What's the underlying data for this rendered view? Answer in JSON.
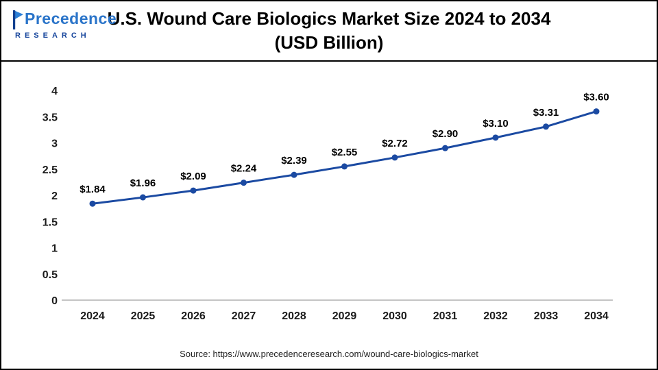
{
  "logo": {
    "name": "Precedence",
    "subtitle": "RESEARCH"
  },
  "header": {
    "title_line1": "U.S. Wound Care Biologics Market Size 2024 to 2034",
    "title_line2": "(USD Billion)"
  },
  "chart_data": {
    "type": "line",
    "title": "U.S. Wound Care Biologics Market Size 2024 to 2034 (USD Billion)",
    "categories": [
      "2024",
      "2025",
      "2026",
      "2027",
      "2028",
      "2029",
      "2030",
      "2031",
      "2032",
      "2033",
      "2034"
    ],
    "values": [
      1.84,
      1.96,
      2.09,
      2.24,
      2.39,
      2.55,
      2.72,
      2.9,
      3.1,
      3.31,
      3.6
    ],
    "point_labels": [
      "$1.84",
      "$1.96",
      "$2.09",
      "$2.24",
      "$2.39",
      "$2.55",
      "$2.72",
      "$2.90",
      "$3.10",
      "$3.31",
      "$3.60"
    ],
    "xlabel": "",
    "ylabel": "",
    "ylim": [
      0,
      4
    ],
    "yticks": [
      "0",
      "0.5",
      "1",
      "1.5",
      "2",
      "2.5",
      "3",
      "3.5",
      "4"
    ],
    "grid": false,
    "legend": "none",
    "line_color": "#1b4aa2",
    "marker_color": "#1b4aa2",
    "label_color": "#000000",
    "axis_color": "#b0b0b0"
  },
  "footer": {
    "source": "Source: https://www.precedenceresearch.com/wound-care-biologics-market"
  }
}
